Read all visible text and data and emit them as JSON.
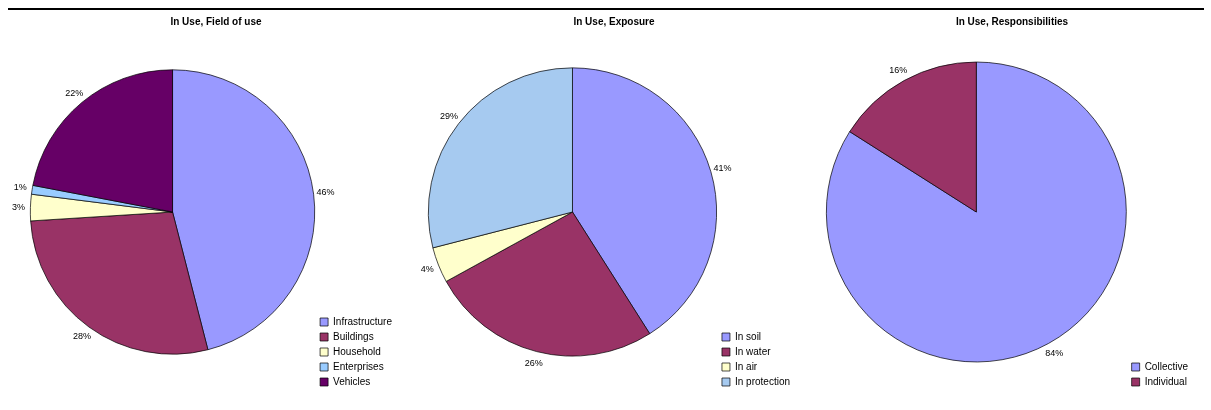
{
  "chart_data": [
    {
      "type": "pie",
      "title": "In Use, Field of use",
      "categories": [
        "Infrastructure",
        "Buildings",
        "Household",
        "Enterprises",
        "Vehicles"
      ],
      "values": [
        46,
        28,
        3,
        1,
        22
      ],
      "colors": [
        "#9999ff",
        "#993366",
        "#ffffcc",
        "#99ccff",
        "#660066"
      ],
      "value_labels": [
        "46%",
        "28%",
        "3%",
        "1%",
        "22%"
      ],
      "legend": "bottom right"
    },
    {
      "type": "pie",
      "title": "In Use, Exposure",
      "categories": [
        "In soil",
        "In water",
        "In air",
        "In protection"
      ],
      "values": [
        41,
        26,
        4,
        29
      ],
      "colors": [
        "#9999ff",
        "#993366",
        "#ffffcc",
        "#a6caf0"
      ],
      "value_labels": [
        "41%",
        "26%",
        "4%",
        "29%"
      ],
      "legend": "bottom right"
    },
    {
      "type": "pie",
      "title": "In Use, Responsibilities",
      "categories": [
        "Collective",
        "Individual"
      ],
      "values": [
        84,
        16
      ],
      "colors": [
        "#9999ff",
        "#993366"
      ],
      "value_labels": [
        "84%",
        "16%"
      ],
      "legend": "bottom right"
    }
  ]
}
